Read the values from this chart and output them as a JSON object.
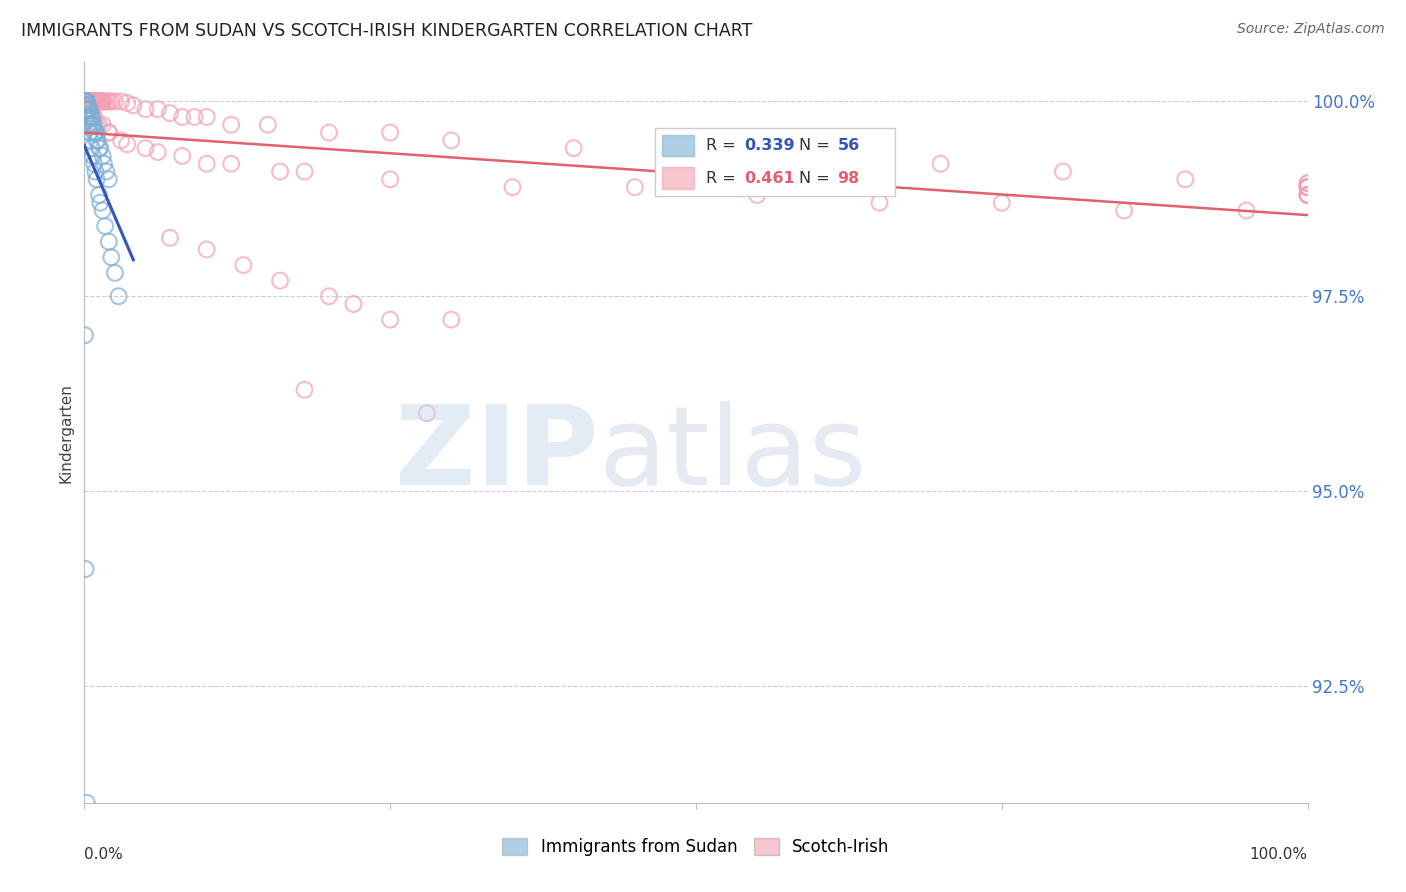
{
  "title": "IMMIGRANTS FROM SUDAN VS SCOTCH-IRISH KINDERGARTEN CORRELATION CHART",
  "source": "Source: ZipAtlas.com",
  "ylabel": "Kindergarten",
  "yright_labels": [
    "92.5%",
    "95.0%",
    "97.5%",
    "100.0%"
  ],
  "yright_vals": [
    0.925,
    0.95,
    0.975,
    1.0
  ],
  "xlim": [
    0.0,
    1.0
  ],
  "ylim": [
    0.91,
    1.005
  ],
  "legend_r1": "0.339",
  "legend_n1": "56",
  "legend_r2": "0.461",
  "legend_n2": "98",
  "blue_color": "#7BAFD4",
  "pink_color": "#F4A0B0",
  "blue_line_color": "#3355BB",
  "pink_line_color": "#E06070",
  "background_color": "#FFFFFF",
  "grid_color": "#CCCCDD",
  "sudan_x": [
    0.0005,
    0.001,
    0.001,
    0.0015,
    0.002,
    0.002,
    0.002,
    0.003,
    0.003,
    0.003,
    0.004,
    0.004,
    0.005,
    0.005,
    0.005,
    0.006,
    0.006,
    0.007,
    0.008,
    0.008,
    0.009,
    0.01,
    0.01,
    0.011,
    0.012,
    0.013,
    0.015,
    0.016,
    0.018,
    0.02,
    0.0005,
    0.001,
    0.001,
    0.0015,
    0.002,
    0.003,
    0.003,
    0.004,
    0.005,
    0.005,
    0.006,
    0.007,
    0.008,
    0.009,
    0.01,
    0.012,
    0.013,
    0.015,
    0.017,
    0.02,
    0.022,
    0.025,
    0.028,
    0.0005,
    0.001,
    0.002
  ],
  "sudan_y": [
    1.0,
    1.0,
    1.0,
    1.0,
    1.0,
    1.0,
    0.9995,
    0.9995,
    0.999,
    0.999,
    0.999,
    0.999,
    0.9985,
    0.998,
    0.998,
    0.998,
    0.997,
    0.997,
    0.997,
    0.996,
    0.996,
    0.996,
    0.995,
    0.995,
    0.994,
    0.994,
    0.993,
    0.992,
    0.991,
    0.99,
    0.9995,
    0.999,
    0.999,
    0.998,
    0.998,
    0.997,
    0.997,
    0.996,
    0.996,
    0.995,
    0.994,
    0.993,
    0.992,
    0.991,
    0.99,
    0.988,
    0.987,
    0.986,
    0.984,
    0.982,
    0.98,
    0.978,
    0.975,
    0.97,
    0.94,
    0.91
  ],
  "scotch_x": [
    0.001,
    0.001,
    0.002,
    0.002,
    0.003,
    0.003,
    0.004,
    0.004,
    0.005,
    0.005,
    0.006,
    0.006,
    0.007,
    0.008,
    0.008,
    0.009,
    0.01,
    0.01,
    0.011,
    0.012,
    0.012,
    0.013,
    0.014,
    0.015,
    0.015,
    0.016,
    0.018,
    0.02,
    0.022,
    0.025,
    0.03,
    0.035,
    0.04,
    0.05,
    0.06,
    0.07,
    0.08,
    0.09,
    0.1,
    0.12,
    0.15,
    0.2,
    0.25,
    0.3,
    0.4,
    0.5,
    0.6,
    0.7,
    0.8,
    0.9,
    1.0,
    1.0,
    1.0,
    1.0,
    1.0,
    1.0,
    1.0,
    1.0,
    1.0,
    1.0,
    0.002,
    0.004,
    0.006,
    0.008,
    0.01,
    0.015,
    0.02,
    0.03,
    0.05,
    0.08,
    0.12,
    0.18,
    0.25,
    0.35,
    0.45,
    0.55,
    0.65,
    0.75,
    0.85,
    0.95,
    0.003,
    0.007,
    0.012,
    0.02,
    0.035,
    0.06,
    0.1,
    0.16,
    0.22,
    0.3,
    0.18,
    0.28,
    0.07,
    0.1,
    0.13,
    0.16,
    0.2,
    0.25
  ],
  "scotch_y": [
    1.0,
    1.0,
    1.0,
    1.0,
    1.0,
    1.0,
    1.0,
    1.0,
    1.0,
    1.0,
    1.0,
    1.0,
    1.0,
    1.0,
    1.0,
    1.0,
    1.0,
    1.0,
    1.0,
    1.0,
    1.0,
    1.0,
    1.0,
    1.0,
    1.0,
    1.0,
    1.0,
    1.0,
    1.0,
    1.0,
    1.0,
    0.9998,
    0.9995,
    0.999,
    0.999,
    0.9985,
    0.998,
    0.998,
    0.998,
    0.997,
    0.997,
    0.996,
    0.996,
    0.995,
    0.994,
    0.993,
    0.993,
    0.992,
    0.991,
    0.99,
    0.9895,
    0.9895,
    0.989,
    0.989,
    0.989,
    0.989,
    0.988,
    0.988,
    0.988,
    0.988,
    0.9995,
    0.999,
    0.999,
    0.998,
    0.997,
    0.997,
    0.996,
    0.995,
    0.994,
    0.993,
    0.992,
    0.991,
    0.99,
    0.989,
    0.989,
    0.988,
    0.987,
    0.987,
    0.986,
    0.986,
    0.999,
    0.998,
    0.997,
    0.996,
    0.9945,
    0.9935,
    0.992,
    0.991,
    0.974,
    0.972,
    0.963,
    0.96,
    0.9825,
    0.981,
    0.979,
    0.977,
    0.975,
    0.972
  ]
}
